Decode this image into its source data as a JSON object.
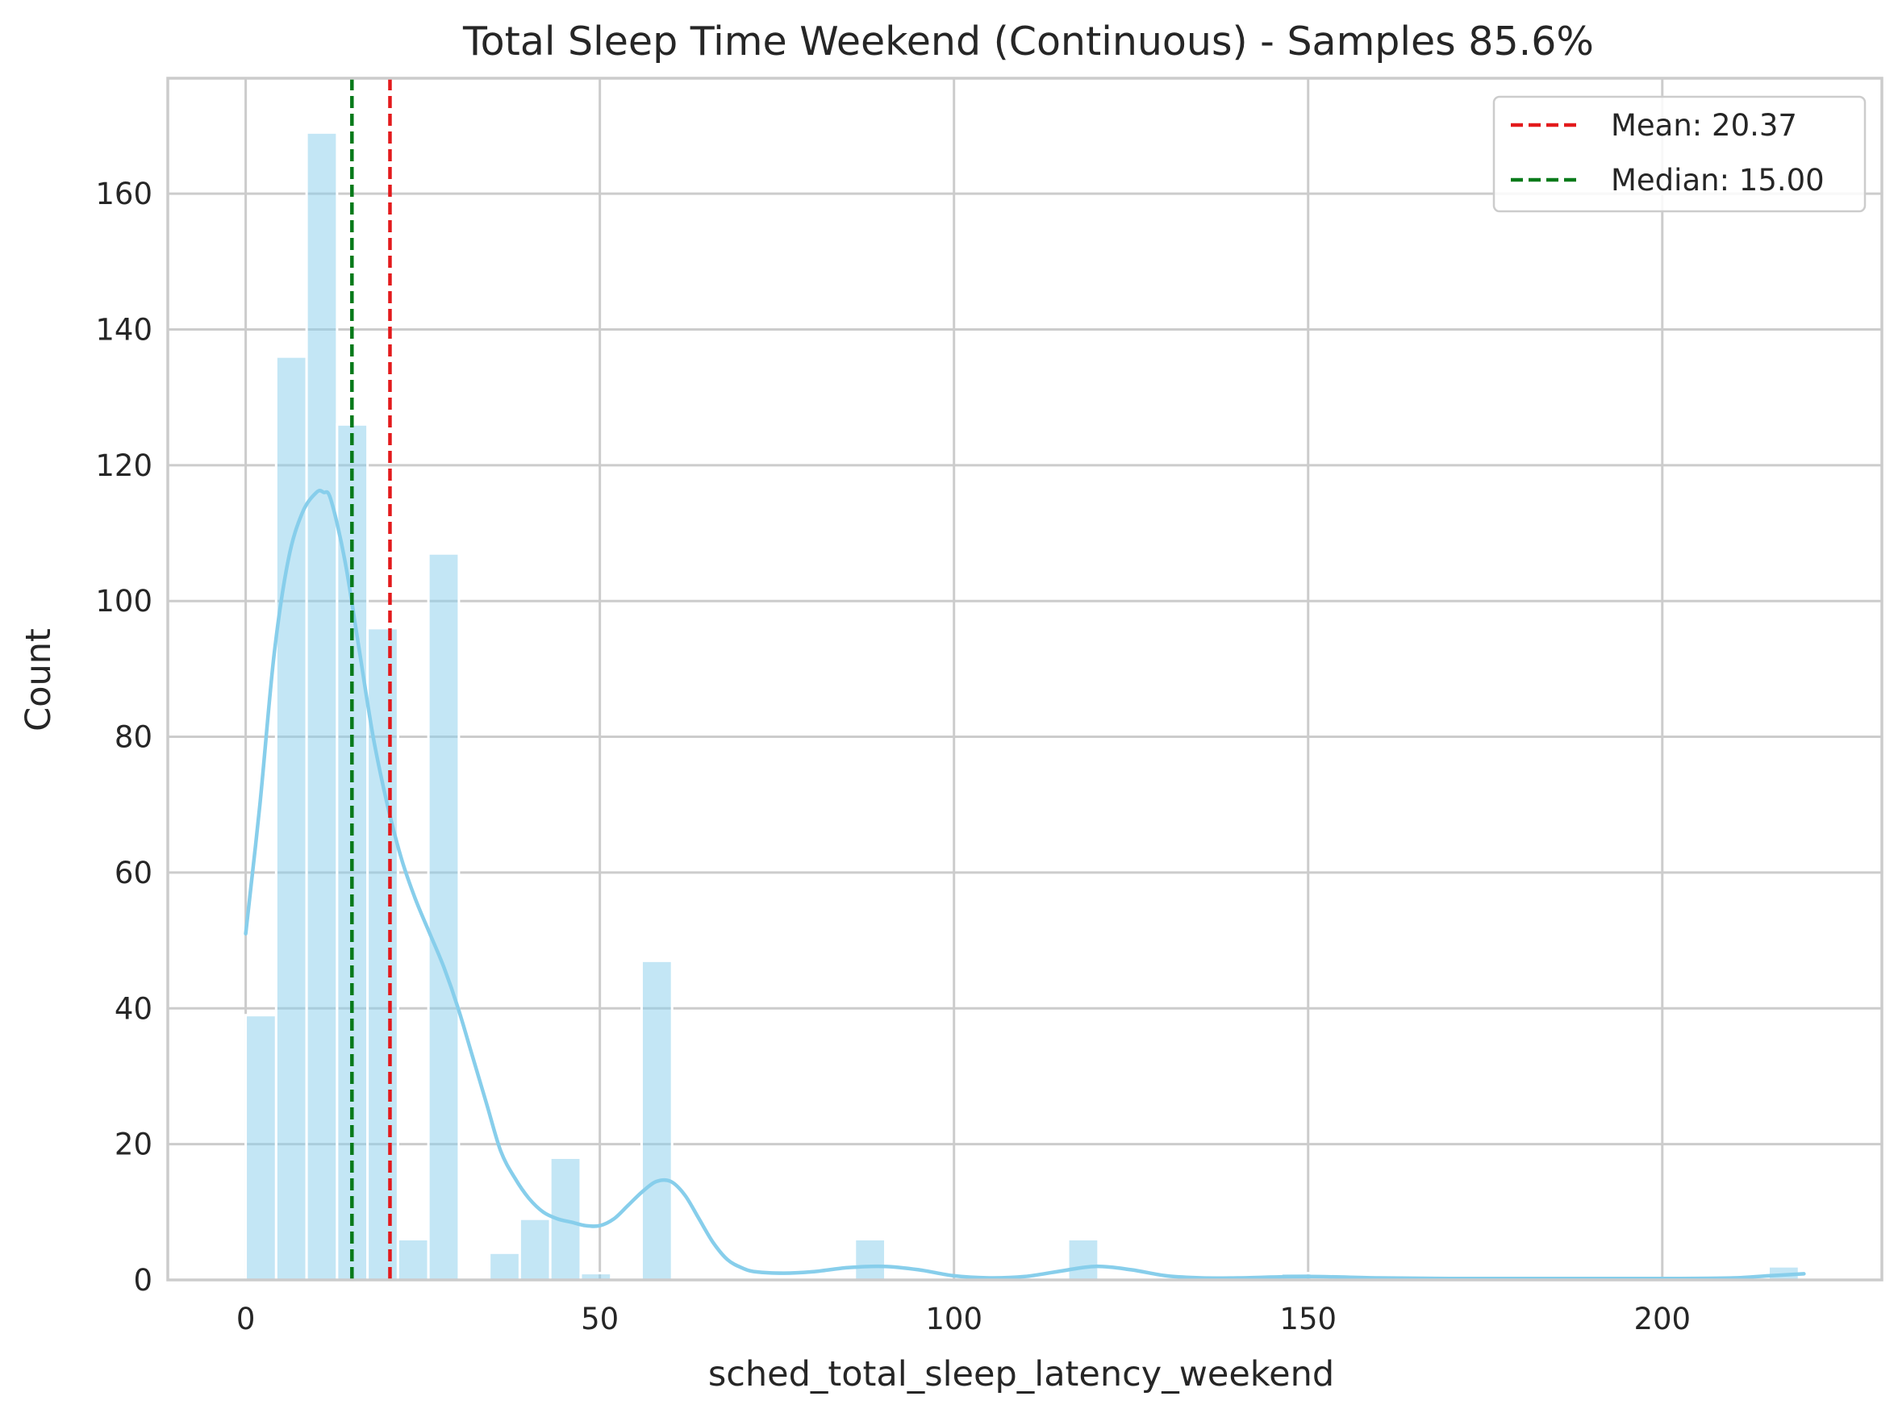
{
  "chart_data": {
    "type": "bar",
    "title": "Total Sleep Time Weekend (Continuous) - Samples 85.6%",
    "xlabel": "sched_total_sleep_latency_weekend",
    "ylabel": "Count",
    "xlim": [
      -11,
      231
    ],
    "ylim": [
      0,
      177
    ],
    "xticks": [
      0,
      50,
      100,
      150,
      200
    ],
    "yticks": [
      0,
      20,
      40,
      60,
      80,
      100,
      120,
      140,
      160
    ],
    "grid": true,
    "legend_position": "top-right",
    "bin_width": 4.3,
    "bins": [
      {
        "x0": 0.0,
        "count": 39
      },
      {
        "x0": 4.3,
        "count": 136
      },
      {
        "x0": 8.6,
        "count": 169
      },
      {
        "x0": 12.9,
        "count": 126
      },
      {
        "x0": 17.2,
        "count": 96
      },
      {
        "x0": 21.5,
        "count": 6
      },
      {
        "x0": 25.8,
        "count": 107
      },
      {
        "x0": 34.4,
        "count": 4
      },
      {
        "x0": 38.7,
        "count": 9
      },
      {
        "x0": 43.0,
        "count": 18
      },
      {
        "x0": 47.3,
        "count": 1
      },
      {
        "x0": 55.9,
        "count": 47
      },
      {
        "x0": 86.0,
        "count": 6
      },
      {
        "x0": 116.1,
        "count": 6
      },
      {
        "x0": 146.2,
        "count": 1
      },
      {
        "x0": 215.0,
        "count": 2
      }
    ],
    "kde": {
      "name": "KDE",
      "x": [
        0,
        2,
        4,
        6,
        8,
        10,
        11,
        12,
        14,
        16,
        18,
        20,
        22,
        24,
        26,
        28,
        30,
        32,
        34,
        36,
        38,
        40,
        42,
        44,
        46,
        48,
        50,
        52,
        54,
        56,
        58,
        60,
        62,
        64,
        66,
        68,
        70,
        72,
        76,
        80,
        85,
        90,
        95,
        100,
        105,
        110,
        115,
        120,
        125,
        130,
        135,
        140,
        150,
        160,
        170,
        180,
        190,
        200,
        210,
        215,
        220
      ],
      "y": [
        51,
        70,
        92,
        106,
        113,
        116,
        116,
        115,
        106,
        93,
        80,
        70,
        62,
        56,
        51,
        46,
        40,
        33,
        26,
        19,
        15,
        12,
        10,
        9,
        8.5,
        8,
        8,
        9,
        11,
        13,
        14.5,
        14.5,
        12.5,
        9,
        5.5,
        3,
        1.8,
        1.2,
        1,
        1.2,
        1.8,
        2,
        1.5,
        0.6,
        0.3,
        0.5,
        1.3,
        2,
        1.5,
        0.6,
        0.3,
        0.3,
        0.5,
        0.3,
        0.2,
        0.2,
        0.2,
        0.2,
        0.3,
        0.6,
        0.9
      ]
    },
    "reference_lines": [
      {
        "name": "Mean: 20.37",
        "value": 20.37,
        "color": "#e31a1c"
      },
      {
        "name": "Median: 15.00",
        "value": 15.0,
        "color": "#087a1a"
      }
    ],
    "colors": {
      "bar_fill": "#87ceeb",
      "bar_opacity": 0.5,
      "kde_line": "#87ceeb",
      "grid": "#cccccc",
      "spine": "#cccccc"
    }
  }
}
